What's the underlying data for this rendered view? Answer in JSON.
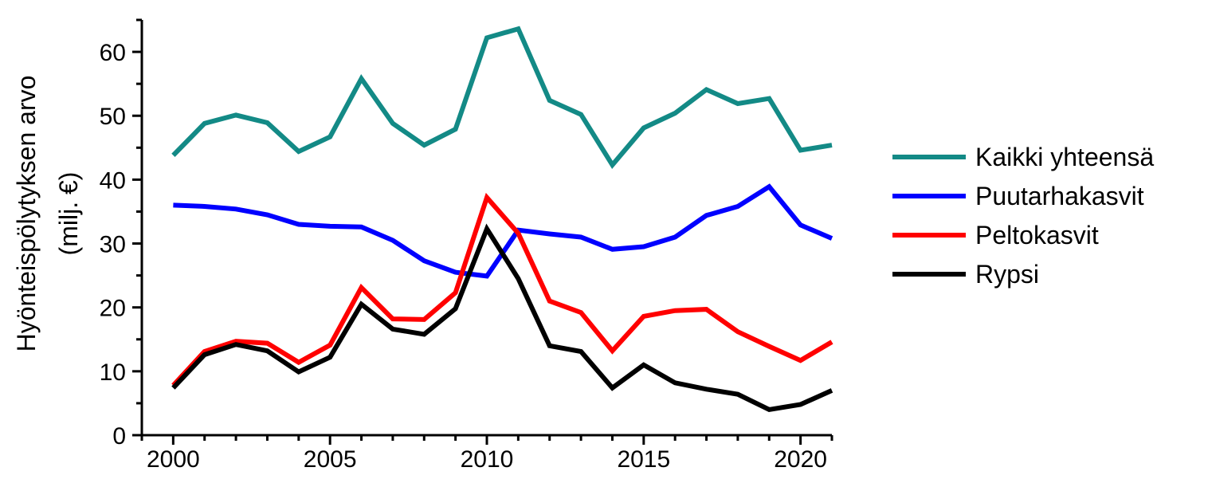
{
  "chart_data": {
    "type": "line",
    "title": "",
    "xlabel": "",
    "ylabel": "Hyönteispölytyksen arvo",
    "ylabel_unit": "(milj. €)",
    "xlim": [
      1999,
      2021
    ],
    "ylim": [
      0,
      65
    ],
    "x_ticks": [
      "2000",
      "2005",
      "2010",
      "2015",
      "2020"
    ],
    "y_ticks": [
      "0",
      "10",
      "20",
      "30",
      "40",
      "50",
      "60"
    ],
    "grid": false,
    "legend_position": "right",
    "x": [
      2000,
      2001,
      2002,
      2003,
      2004,
      2005,
      2006,
      2007,
      2008,
      2009,
      2010,
      2011,
      2012,
      2013,
      2014,
      2015,
      2016,
      2017,
      2018,
      2019,
      2020,
      2021
    ],
    "series": [
      {
        "name": "Kaikki yhteensä",
        "color": "#138a86",
        "values": [
          43.8,
          48.8,
          50.1,
          48.9,
          44.4,
          46.7,
          55.8,
          48.8,
          45.4,
          47.9,
          62.2,
          63.6,
          52.4,
          50.2,
          42.3,
          48.1,
          50.4,
          54.1,
          51.9,
          52.7,
          44.6,
          45.4
        ]
      },
      {
        "name": "Puutarhakasvit",
        "color": "#0000ff",
        "values": [
          36.0,
          35.8,
          35.4,
          34.5,
          33.0,
          32.7,
          32.6,
          30.5,
          27.3,
          25.5,
          24.9,
          32.1,
          31.5,
          31.0,
          29.1,
          29.5,
          31.0,
          34.4,
          35.8,
          38.9,
          32.9,
          30.8
        ]
      },
      {
        "name": "Peltokasvit",
        "color": "#ff0000",
        "values": [
          7.8,
          13.1,
          14.7,
          14.4,
          11.4,
          14.1,
          23.1,
          18.2,
          18.1,
          22.3,
          37.2,
          31.6,
          21.0,
          19.2,
          13.2,
          18.6,
          19.5,
          19.7,
          16.2,
          13.9,
          11.7,
          14.6
        ]
      },
      {
        "name": "Rypsi",
        "color": "#000000",
        "values": [
          7.4,
          12.6,
          14.2,
          13.2,
          9.9,
          12.2,
          20.5,
          16.6,
          15.8,
          19.8,
          32.3,
          24.5,
          14.0,
          13.1,
          7.4,
          11.0,
          8.2,
          7.2,
          6.4,
          4.0,
          4.8,
          7.0
        ]
      }
    ]
  }
}
